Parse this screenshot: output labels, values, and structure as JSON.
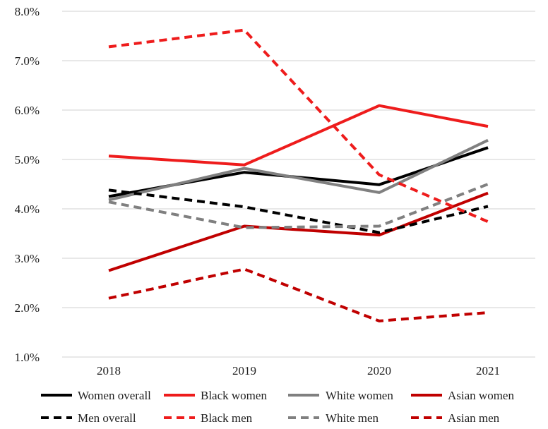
{
  "chart_data": {
    "type": "line",
    "title": "",
    "xlabel": "",
    "ylabel": "",
    "categories": [
      "2018",
      "2019",
      "2020",
      "2021"
    ],
    "ylim": [
      0.01,
      0.08
    ],
    "y_ticks": [
      "1.0%",
      "2.0%",
      "3.0%",
      "4.0%",
      "5.0%",
      "6.0%",
      "7.0%",
      "8.0%"
    ],
    "grid": true,
    "legend_position": "bottom",
    "series": [
      {
        "name": "Women overall",
        "values": [
          0.0425,
          0.0474,
          0.0449,
          0.0524
        ],
        "color": "#000000",
        "dashed": false
      },
      {
        "name": "Black women",
        "values": [
          0.0507,
          0.0489,
          0.0609,
          0.0567
        ],
        "color": "#ee1c1c",
        "dashed": false
      },
      {
        "name": "White women",
        "values": [
          0.0418,
          0.0482,
          0.0433,
          0.0539
        ],
        "color": "#808080",
        "dashed": false
      },
      {
        "name": "Asian women",
        "values": [
          0.0275,
          0.0365,
          0.0347,
          0.0432
        ],
        "color": "#c00000",
        "dashed": false
      },
      {
        "name": "Men overall",
        "values": [
          0.0438,
          0.0404,
          0.0352,
          0.0405
        ],
        "color": "#000000",
        "dashed": true
      },
      {
        "name": "Black men",
        "values": [
          0.0728,
          0.0762,
          0.0469,
          0.0374
        ],
        "color": "#ee1c1c",
        "dashed": true
      },
      {
        "name": "White men",
        "values": [
          0.0414,
          0.0362,
          0.0365,
          0.045
        ],
        "color": "#808080",
        "dashed": true
      },
      {
        "name": "Asian men",
        "values": [
          0.0219,
          0.0278,
          0.0173,
          0.019
        ],
        "color": "#c00000",
        "dashed": true
      }
    ]
  }
}
